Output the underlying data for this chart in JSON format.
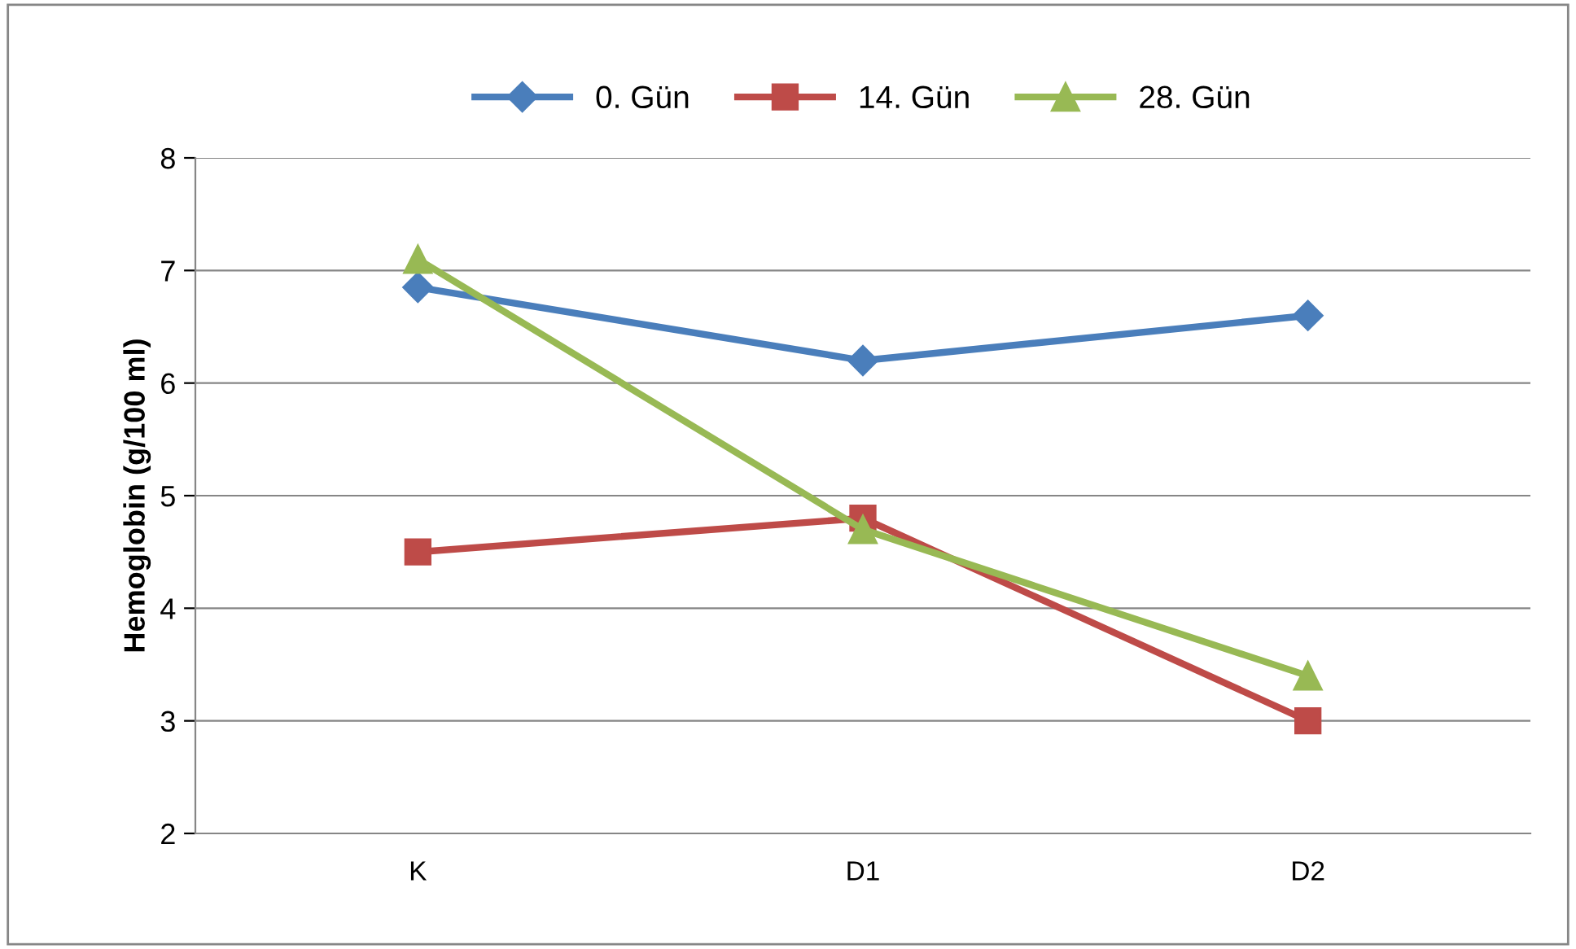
{
  "chart_data": {
    "type": "line",
    "ylabel": "Hemoglobin (g/100 ml)",
    "categories": [
      "K",
      "D1",
      "D2"
    ],
    "series": [
      {
        "name": "0. Gün",
        "color": "#4a7ebb",
        "values": [
          6.85,
          6.2,
          6.6
        ],
        "marker": "diamond"
      },
      {
        "name": "14. Gün",
        "color": "#be4b48",
        "values": [
          4.5,
          4.8,
          3.0
        ],
        "marker": "square"
      },
      {
        "name": "28. Gün",
        "color": "#98b954",
        "values": [
          7.1,
          4.7,
          3.4
        ],
        "marker": "triangle"
      }
    ],
    "ylim": [
      2,
      8
    ],
    "yticks": [
      2,
      3,
      4,
      5,
      6,
      7,
      8
    ],
    "grid": "y",
    "legend": "top",
    "line_style": "solid"
  }
}
